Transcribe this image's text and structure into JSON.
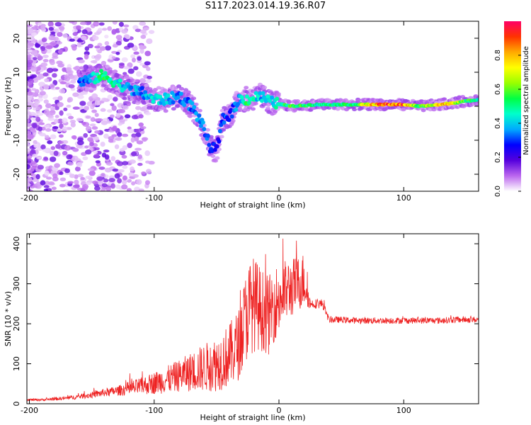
{
  "title": "S117.2023.014.19.36.R07",
  "chart_data": [
    {
      "type": "heatmap",
      "xlabel": "Height of straight line (km)",
      "ylabel": "Frequency (Hz)",
      "xlim": [
        -202,
        160
      ],
      "ylim": [
        -25,
        25
      ],
      "xticks": [
        -200,
        -100,
        0,
        100
      ],
      "yticks": [
        -20,
        -10,
        0,
        10,
        20
      ],
      "colorbar": {
        "label": "Normalized spectral amplitude",
        "range": [
          0,
          1
        ],
        "ticks": [
          "0.0",
          "0.2",
          "0.4",
          "0.6",
          "0.8"
        ],
        "colors": [
          "#ffffff",
          "#bb66ee",
          "#5500dd",
          "#0000ff",
          "#00aaff",
          "#00ffcc",
          "#00ff44",
          "#99ff00",
          "#ffff00",
          "#ffaa00",
          "#ff3300",
          "#ff0066"
        ]
      },
      "ridge": [
        {
          "x": -160,
          "f": 7,
          "a": 0.3
        },
        {
          "x": -150,
          "f": 8,
          "a": 0.4
        },
        {
          "x": -142,
          "f": 9,
          "a": 0.55
        },
        {
          "x": -130,
          "f": 7,
          "a": 0.45
        },
        {
          "x": -120,
          "f": 5,
          "a": 0.4
        },
        {
          "x": -110,
          "f": 4,
          "a": 0.35
        },
        {
          "x": -100,
          "f": 2,
          "a": 0.45
        },
        {
          "x": -90,
          "f": 2,
          "a": 0.4
        },
        {
          "x": -80,
          "f": 3,
          "a": 0.35
        },
        {
          "x": -70,
          "f": 0,
          "a": 0.35
        },
        {
          "x": -62,
          "f": -5,
          "a": 0.35
        },
        {
          "x": -55,
          "f": -12,
          "a": 0.3
        },
        {
          "x": -50,
          "f": -13,
          "a": 0.25
        },
        {
          "x": -45,
          "f": -4,
          "a": 0.35
        },
        {
          "x": -38,
          "f": -2,
          "a": 0.3
        },
        {
          "x": -32,
          "f": 2,
          "a": 0.4
        },
        {
          "x": -25,
          "f": 2,
          "a": 0.55
        },
        {
          "x": -15,
          "f": 3,
          "a": 0.4
        },
        {
          "x": -5,
          "f": 1,
          "a": 0.45
        },
        {
          "x": 10,
          "f": 0,
          "a": 0.6
        },
        {
          "x": 30,
          "f": 0.5,
          "a": 0.5
        },
        {
          "x": 60,
          "f": 0.5,
          "a": 0.55
        },
        {
          "x": 80,
          "f": 0.5,
          "a": 0.9
        },
        {
          "x": 100,
          "f": 0.5,
          "a": 0.9
        },
        {
          "x": 112,
          "f": 0,
          "a": 0.55
        },
        {
          "x": 130,
          "f": 0.5,
          "a": 0.85
        },
        {
          "x": 160,
          "f": 2,
          "a": 0.45
        }
      ]
    },
    {
      "type": "line",
      "series": [
        {
          "color": "#ee2222",
          "x": [
            -202,
            -190,
            -180,
            -170,
            -160,
            -150,
            -140,
            -130,
            -120,
            -110,
            -100,
            -90,
            -80,
            -70,
            -60,
            -50,
            -40,
            -32,
            -28,
            -24,
            -20,
            -16,
            -12,
            -8,
            -4,
            0,
            5,
            10,
            15,
            20,
            25,
            30,
            35,
            40,
            50,
            60,
            70,
            80,
            90,
            100,
            110,
            120,
            130,
            140,
            150,
            160
          ],
          "y": [
            10,
            10,
            12,
            14,
            18,
            22,
            28,
            32,
            38,
            44,
            52,
            60,
            70,
            80,
            90,
            100,
            120,
            150,
            200,
            240,
            250,
            240,
            230,
            220,
            250,
            260,
            280,
            290,
            300,
            310,
            250,
            250,
            250,
            210,
            210,
            208,
            208,
            208,
            208,
            208,
            208,
            208,
            208,
            210,
            210,
            210
          ]
        }
      ],
      "noise": [
        3,
        3,
        4,
        5,
        6,
        8,
        10,
        12,
        18,
        22,
        28,
        34,
        40,
        50,
        60,
        70,
        80,
        90,
        110,
        120,
        120,
        110,
        100,
        100,
        95,
        90,
        80,
        75,
        70,
        70,
        12,
        12,
        12,
        8,
        8,
        8,
        8,
        8,
        8,
        8,
        8,
        8,
        8,
        8,
        8,
        8
      ],
      "xlabel": "Height of straight line (km)",
      "ylabel": "SNR (10 * v/v)",
      "xlim": [
        -202,
        160
      ],
      "ylim": [
        0,
        425
      ],
      "xticks": [
        -200,
        -100,
        0,
        100
      ],
      "yticks": [
        0,
        100,
        200,
        300,
        400
      ]
    }
  ]
}
